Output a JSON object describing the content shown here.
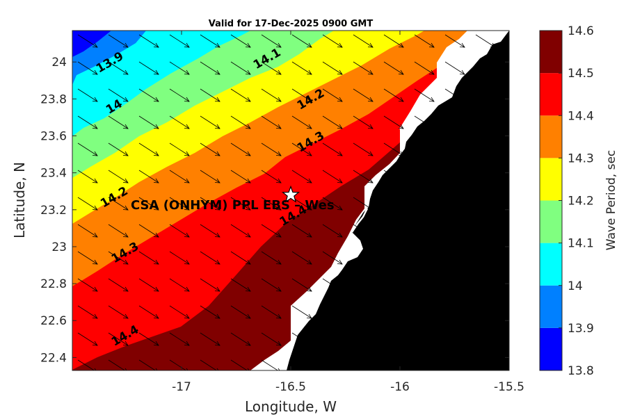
{
  "title": "Valid for 17-Dec-2025 0900 GMT",
  "xlabel": "Longitude, W",
  "ylabel": "Latitude, N",
  "colorbar_label": "Wave Period, sec",
  "x_ticks": [
    "-17",
    "-16.5",
    "-16",
    "-15.5"
  ],
  "y_ticks": [
    "22.4",
    "22.6",
    "22.8",
    "23",
    "23.2",
    "23.4",
    "23.6",
    "23.8",
    "24"
  ],
  "colorbar_ticks": [
    "13.8",
    "13.9",
    "14",
    "14.1",
    "14.2",
    "14.3",
    "14.4",
    "14.5",
    "14.6"
  ],
  "site_label": "CSA (ONHYM) PPL EBS – Wes",
  "chart_data": {
    "type": "contour-map",
    "xlim": [
      -17.5,
      -15.5
    ],
    "ylim": [
      22.33,
      24.17
    ],
    "colorbar_range": [
      13.8,
      14.6
    ],
    "levels": [
      {
        "from": 13.8,
        "to": 13.9,
        "color": "#0000ff"
      },
      {
        "from": 13.9,
        "to": 14.0,
        "color": "#0080ff"
      },
      {
        "from": 14.0,
        "to": 14.1,
        "color": "#00ffff"
      },
      {
        "from": 14.1,
        "to": 14.2,
        "color": "#80ff80"
      },
      {
        "from": 14.2,
        "to": 14.3,
        "color": "#ffff00"
      },
      {
        "from": 14.3,
        "to": 14.4,
        "color": "#ff8000"
      },
      {
        "from": 14.4,
        "to": 14.5,
        "color": "#ff0000"
      },
      {
        "from": 14.5,
        "to": 14.6,
        "color": "#800000"
      }
    ],
    "contour_labels": [
      {
        "text": "13.9",
        "lon": -17.32,
        "lat": 23.98
      },
      {
        "text": "14",
        "lon": -17.3,
        "lat": 23.74
      },
      {
        "text": "14.1",
        "lon": -16.6,
        "lat": 24.0
      },
      {
        "text": "14.2",
        "lon": -16.4,
        "lat": 23.78
      },
      {
        "text": "14.3",
        "lon": -16.4,
        "lat": 23.55
      },
      {
        "text": "14.2",
        "lon": -17.3,
        "lat": 23.25
      },
      {
        "text": "14.3",
        "lon": -17.25,
        "lat": 22.95
      },
      {
        "text": "14.4",
        "lon": -16.48,
        "lat": 23.15
      },
      {
        "text": "14.4",
        "lon": -17.25,
        "lat": 22.5
      }
    ],
    "site": {
      "lon": -16.5,
      "lat": 23.28
    },
    "arrow_direction": "toward east-southeast"
  },
  "colors": {
    "land": "#000000",
    "masked": "#ffffff"
  }
}
